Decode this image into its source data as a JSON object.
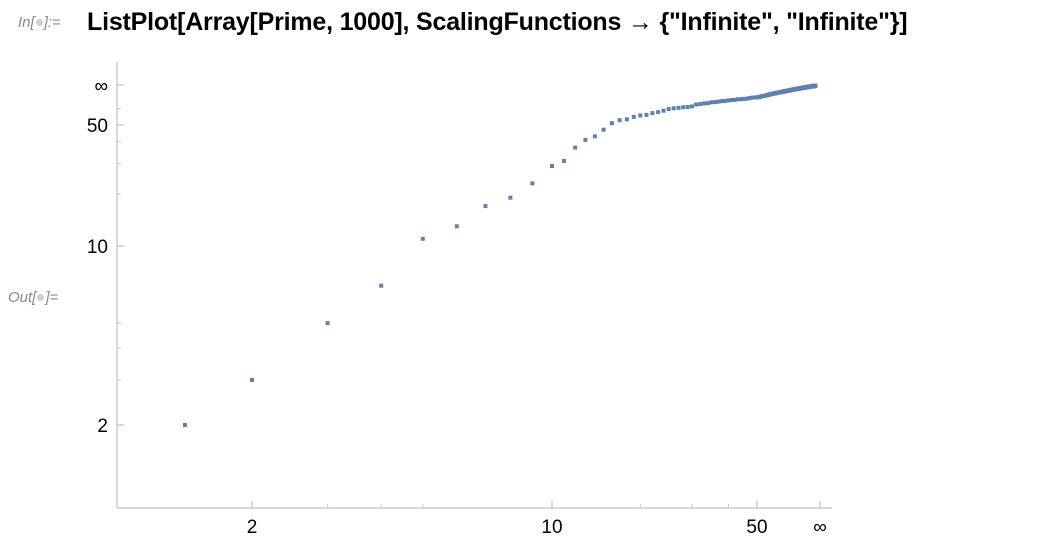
{
  "input": {
    "label": "In[●]:=",
    "code": "ListPlot[Array[Prime, 1000], ScalingFunctions → {\"Infinite\", \"Infinite\"}]"
  },
  "output": {
    "label": "Out[●]="
  },
  "chart_data": {
    "type": "scatter",
    "title": "",
    "xlabel": "",
    "ylabel": "",
    "x_scale": "infinite",
    "y_scale": "infinite",
    "x_tick_labels": [
      "2",
      "10",
      "50",
      "∞"
    ],
    "y_tick_labels": [
      "2",
      "10",
      "50",
      "∞"
    ],
    "grid": false,
    "legend": "none",
    "point_color": "#5e81b5",
    "series": [
      {
        "values_description": "Prime[n] for n = 1..1000",
        "x": [
          1,
          2,
          3,
          4,
          5,
          6,
          7,
          8,
          9,
          10,
          11,
          12,
          13,
          14,
          15,
          16,
          17,
          18,
          19,
          20,
          25,
          30,
          40,
          50,
          60,
          80,
          100,
          150,
          200,
          300,
          500,
          1000
        ],
        "y": [
          2,
          3,
          5,
          7,
          11,
          13,
          17,
          19,
          23,
          29,
          31,
          37,
          41,
          43,
          47,
          53,
          59,
          61,
          67,
          71,
          97,
          113,
          173,
          229,
          281,
          409,
          541,
          863,
          1223,
          1987,
          3571,
          7919
        ]
      }
    ]
  }
}
